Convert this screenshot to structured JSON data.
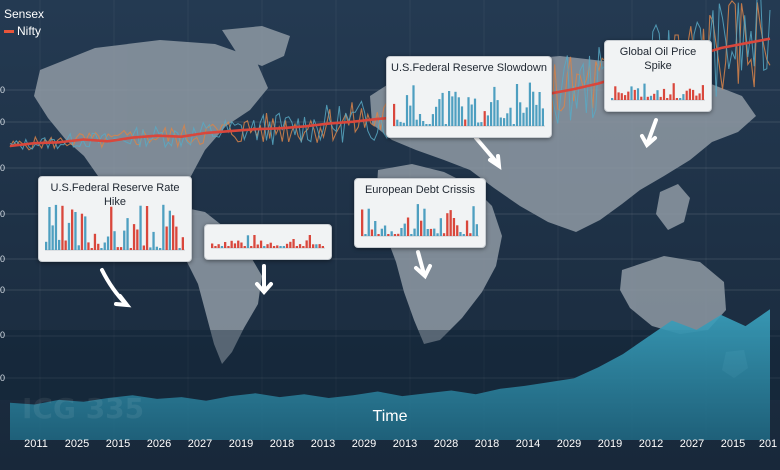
{
  "chart_data": {
    "type": "line",
    "xlabel": "Time",
    "x_tick_labels": [
      "2011",
      "2025",
      "2015",
      "2026",
      "2027",
      "2019",
      "2018",
      "2013",
      "2029",
      "2013",
      "2028",
      "2018",
      "2014",
      "2029",
      "2019",
      "2012",
      "2027",
      "2015",
      "201"
    ],
    "y_tick_labels": [
      "0",
      "0",
      "0",
      "0",
      "0",
      "0",
      "0",
      "0"
    ],
    "legend": [
      {
        "name": "Sensex",
        "color": "#ffffff"
      },
      {
        "name": "Nifty",
        "color": "#e8553a"
      }
    ],
    "series": [
      {
        "name": "Nifty",
        "color": "#d9473c",
        "values": [
          315,
          318,
          319,
          322,
          320,
          324,
          326,
          325,
          329,
          331,
          333,
          334,
          336,
          339,
          341,
          344,
          346,
          349,
          352,
          356,
          361,
          366,
          371,
          376,
          382,
          390,
          397,
          405,
          412,
          420,
          425,
          430
        ]
      },
      {
        "name": "Sensex",
        "color": "#2d93b3",
        "values": [
          40,
          38,
          43,
          41,
          45,
          48,
          44,
          46,
          42,
          47,
          50,
          46,
          49,
          45,
          48,
          52,
          47,
          50,
          53,
          49,
          55,
          58,
          62,
          66,
          78,
          92,
          110,
          128,
          118,
          134,
          122,
          140
        ]
      }
    ],
    "annotations": [
      {
        "label": "U.S.Federal Reserve Rate Hike"
      },
      {
        "label": ""
      },
      {
        "label": "U.S.Federal Reserve Slowdown"
      },
      {
        "label": "European Debt Crissis"
      },
      {
        "label": "Global Oil Price Spike"
      }
    ],
    "grid": true,
    "legend_placement": "top-left"
  },
  "colors": {
    "background": "#1b2b3d",
    "map": "#8f9aa4",
    "area_fill": "#2a8aa6",
    "trend": "#d9473c",
    "volatile_orange": "#d8844a",
    "volatile_blue": "#58a9c4"
  }
}
